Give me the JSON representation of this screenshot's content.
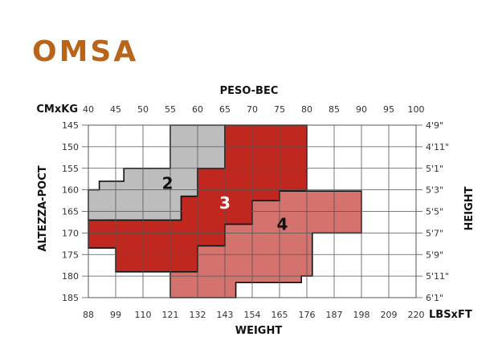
{
  "brand": {
    "logo_text": "OMSA",
    "logo_color": "#b8641a"
  },
  "chart_data": {
    "type": "area",
    "title": "",
    "top_axis": {
      "title": "PESO-BEC",
      "unit_label": "CMxKG",
      "ticks": [
        40,
        45,
        50,
        55,
        60,
        65,
        70,
        75,
        80,
        85,
        90,
        95,
        100
      ]
    },
    "bottom_axis": {
      "title": "WEIGHT",
      "unit_label": "LBSxFT",
      "ticks": [
        88,
        99,
        110,
        121,
        132,
        143,
        154,
        165,
        176,
        187,
        198,
        209,
        220
      ]
    },
    "left_axis": {
      "title": "ALTEZZA-POCT",
      "ticks": [
        145,
        150,
        155,
        160,
        165,
        170,
        175,
        180,
        185
      ],
      "range": [
        145,
        185
      ]
    },
    "right_axis": {
      "title": "HEIGHT",
      "ticks": [
        "4'9\"",
        "4'11\"",
        "5'1\"",
        "5'3\"",
        "5'5\"",
        "5'7\"",
        "5'9\"",
        "5'11\"",
        "6'1\""
      ]
    },
    "x_range_kg": [
      40,
      100
    ],
    "grid": true,
    "regions": [
      {
        "size": "2",
        "color": "#bdbdbd",
        "label_color": "#111111",
        "label_at": [
          54.5,
          158.5
        ],
        "polygon_kg_cm": [
          [
            40,
            160
          ],
          [
            42,
            160
          ],
          [
            42,
            158
          ],
          [
            46.5,
            158
          ],
          [
            46.5,
            155
          ],
          [
            55,
            155
          ],
          [
            55,
            145
          ],
          [
            65,
            145
          ],
          [
            65,
            155
          ],
          [
            60,
            155
          ],
          [
            60,
            161.5
          ],
          [
            57,
            161.5
          ],
          [
            57,
            167
          ],
          [
            40,
            167
          ]
        ]
      },
      {
        "size": "3",
        "color": "#c0271f",
        "label_color": "#ffffff",
        "label_at": [
          65,
          163
        ],
        "polygon_kg_cm": [
          [
            65,
            145
          ],
          [
            80,
            145
          ],
          [
            80,
            160.3
          ],
          [
            75,
            160.3
          ],
          [
            75,
            162.5
          ],
          [
            70,
            162.5
          ],
          [
            70,
            168
          ],
          [
            65,
            168
          ],
          [
            65,
            173
          ],
          [
            60,
            173
          ],
          [
            60,
            179
          ],
          [
            45,
            179
          ],
          [
            45,
            173.5
          ],
          [
            40,
            173.5
          ],
          [
            40,
            167
          ],
          [
            57,
            167
          ],
          [
            57,
            161.5
          ],
          [
            60,
            161.5
          ],
          [
            60,
            155
          ],
          [
            65,
            155
          ]
        ]
      },
      {
        "size": "4",
        "color": "#d4726e",
        "label_color": "#111111",
        "label_at": [
          75.5,
          168
        ],
        "polygon_kg_cm": [
          [
            70,
            162.5
          ],
          [
            75,
            162.5
          ],
          [
            75,
            160.3
          ],
          [
            90,
            160.3
          ],
          [
            90,
            170
          ],
          [
            81,
            170
          ],
          [
            81,
            180
          ],
          [
            79,
            180
          ],
          [
            79,
            181.5
          ],
          [
            67,
            181.5
          ],
          [
            67,
            185
          ],
          [
            55,
            185
          ],
          [
            55,
            179
          ],
          [
            60,
            179
          ],
          [
            60,
            173
          ],
          [
            65,
            173
          ],
          [
            65,
            168
          ],
          [
            70,
            168
          ]
        ]
      }
    ]
  }
}
